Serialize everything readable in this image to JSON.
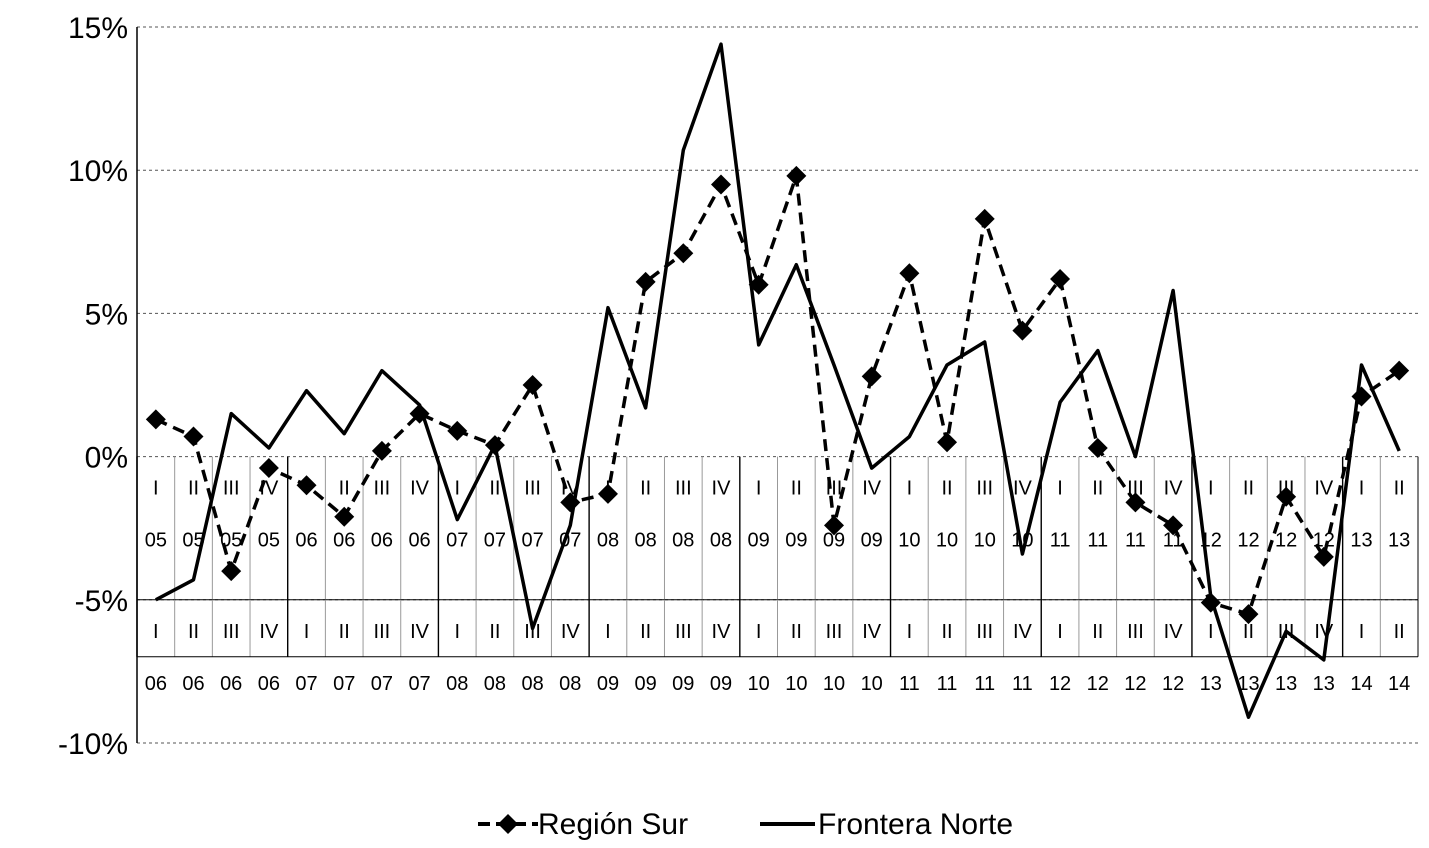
{
  "chart_data": {
    "type": "line",
    "y_tick_labels": [
      "15%",
      "10%",
      "5%",
      "0%",
      "-5%",
      "-10%"
    ],
    "y_ticks": [
      15,
      10,
      5,
      0,
      -5,
      -10
    ],
    "ylim": [
      -10,
      15
    ],
    "grid": true,
    "legend_position": "bottom",
    "x_categories_row1": [
      {
        "q": "I",
        "y": "05"
      },
      {
        "q": "II",
        "y": "05"
      },
      {
        "q": "III",
        "y": "05"
      },
      {
        "q": "IV",
        "y": "05"
      },
      {
        "q": "I",
        "y": "06"
      },
      {
        "q": "II",
        "y": "06"
      },
      {
        "q": "III",
        "y": "06"
      },
      {
        "q": "IV",
        "y": "06"
      },
      {
        "q": "I",
        "y": "07"
      },
      {
        "q": "II",
        "y": "07"
      },
      {
        "q": "III",
        "y": "07"
      },
      {
        "q": "IV",
        "y": "07"
      },
      {
        "q": "I",
        "y": "08"
      },
      {
        "q": "II",
        "y": "08"
      },
      {
        "q": "III",
        "y": "08"
      },
      {
        "q": "IV",
        "y": "08"
      },
      {
        "q": "I",
        "y": "09"
      },
      {
        "q": "II",
        "y": "09"
      },
      {
        "q": "III",
        "y": "09"
      },
      {
        "q": "IV",
        "y": "09"
      },
      {
        "q": "I",
        "y": "10"
      },
      {
        "q": "II",
        "y": "10"
      },
      {
        "q": "III",
        "y": "10"
      },
      {
        "q": "IV",
        "y": "10"
      },
      {
        "q": "I",
        "y": "11"
      },
      {
        "q": "II",
        "y": "11"
      },
      {
        "q": "III",
        "y": "11"
      },
      {
        "q": "IV",
        "y": "11"
      },
      {
        "q": "I",
        "y": "12"
      },
      {
        "q": "II",
        "y": "12"
      },
      {
        "q": "III",
        "y": "12"
      },
      {
        "q": "IV",
        "y": "12"
      },
      {
        "q": "I",
        "y": "13"
      },
      {
        "q": "II",
        "y": "13"
      }
    ],
    "x_categories_row2": [
      {
        "q": "I",
        "y": "06"
      },
      {
        "q": "II",
        "y": "06"
      },
      {
        "q": "III",
        "y": "06"
      },
      {
        "q": "IV",
        "y": "06"
      },
      {
        "q": "I",
        "y": "07"
      },
      {
        "q": "II",
        "y": "07"
      },
      {
        "q": "III",
        "y": "07"
      },
      {
        "q": "IV",
        "y": "07"
      },
      {
        "q": "I",
        "y": "08"
      },
      {
        "q": "II",
        "y": "08"
      },
      {
        "q": "III",
        "y": "08"
      },
      {
        "q": "IV",
        "y": "08"
      },
      {
        "q": "I",
        "y": "09"
      },
      {
        "q": "II",
        "y": "09"
      },
      {
        "q": "III",
        "y": "09"
      },
      {
        "q": "IV",
        "y": "09"
      },
      {
        "q": "I",
        "y": "10"
      },
      {
        "q": "II",
        "y": "10"
      },
      {
        "q": "III",
        "y": "10"
      },
      {
        "q": "IV",
        "y": "10"
      },
      {
        "q": "I",
        "y": "11"
      },
      {
        "q": "II",
        "y": "11"
      },
      {
        "q": "III",
        "y": "11"
      },
      {
        "q": "IV",
        "y": "11"
      },
      {
        "q": "I",
        "y": "12"
      },
      {
        "q": "II",
        "y": "12"
      },
      {
        "q": "III",
        "y": "12"
      },
      {
        "q": "IV",
        "y": "12"
      },
      {
        "q": "I",
        "y": "13"
      },
      {
        "q": "II",
        "y": "13"
      },
      {
        "q": "III",
        "y": "13"
      },
      {
        "q": "IV",
        "y": "13"
      },
      {
        "q": "I",
        "y": "14"
      },
      {
        "q": "II",
        "y": "14"
      }
    ],
    "series": [
      {
        "name": "Región Sur",
        "style": "dashed-diamond",
        "color": "#000000",
        "values": [
          1.3,
          0.7,
          -4.0,
          -0.4,
          -1.0,
          -2.1,
          0.2,
          1.5,
          0.9,
          0.4,
          2.5,
          -1.6,
          -1.3,
          6.1,
          7.1,
          9.5,
          6.0,
          9.8,
          -2.4,
          2.8,
          6.4,
          0.5,
          8.3,
          4.4,
          6.2,
          0.3,
          -1.6,
          -2.4,
          -5.1,
          -5.5,
          -1.4,
          -3.5,
          2.1,
          3.0
        ]
      },
      {
        "name": "Frontera Norte",
        "style": "solid",
        "color": "#000000",
        "values": [
          -5.0,
          -4.3,
          1.5,
          0.3,
          2.3,
          0.8,
          3.0,
          1.8,
          -2.2,
          0.4,
          -6.0,
          -2.4,
          5.2,
          1.7,
          10.7,
          14.4,
          3.9,
          6.7,
          3.2,
          -0.4,
          0.7,
          3.2,
          4.0,
          -3.4,
          1.9,
          3.7,
          0.0,
          5.8,
          -4.9,
          -9.1,
          -6.1,
          -7.1,
          3.2,
          0.2
        ]
      }
    ]
  }
}
